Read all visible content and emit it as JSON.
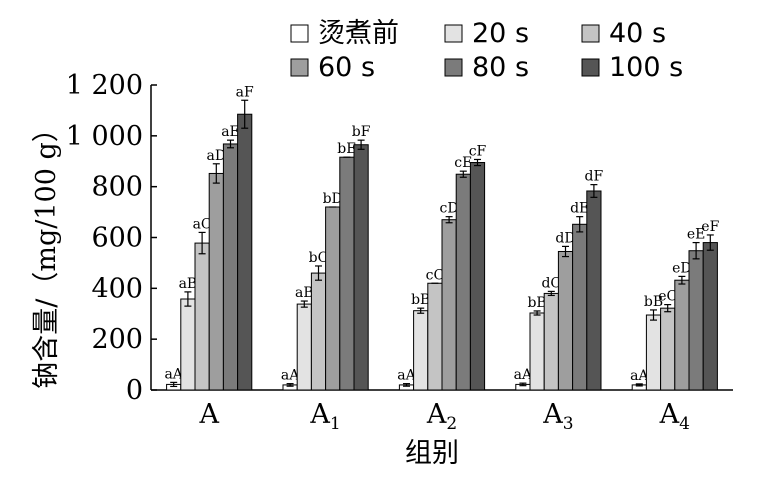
{
  "chart_data": {
    "type": "bar",
    "ylabel_cn": "钠含量/",
    "ylabel_unit": "（mg/100 g）",
    "xlabel": "组别",
    "ylim": [
      0,
      1200
    ],
    "yticks": [
      0,
      200,
      400,
      600,
      800,
      1000,
      1200
    ],
    "ytick_labels": [
      "0",
      "200",
      "400",
      "600",
      "800",
      "1 000",
      "1 200"
    ],
    "categories": [
      {
        "base": "A",
        "sub": ""
      },
      {
        "base": "A",
        "sub": "1"
      },
      {
        "base": "A",
        "sub": "2"
      },
      {
        "base": "A",
        "sub": "3"
      },
      {
        "base": "A",
        "sub": "4"
      }
    ],
    "legend_placement": "top",
    "series": [
      {
        "name": "烫煮前",
        "color": "#ffffff",
        "values": [
          22,
          20,
          20,
          22,
          20
        ],
        "errors": [
          8,
          5,
          5,
          5,
          4
        ],
        "labels": [
          "aA",
          "aA",
          "aA",
          "aA",
          "aA"
        ]
      },
      {
        "name": "20 s",
        "color": "#e3e3e3",
        "values": [
          358,
          338,
          312,
          303,
          295
        ],
        "errors": [
          28,
          12,
          10,
          8,
          20
        ],
        "labels": [
          "aB",
          "aB",
          "bB",
          "bB",
          "bB"
        ]
      },
      {
        "name": "40 s",
        "color": "#c4c4c4",
        "values": [
          578,
          460,
          420,
          380,
          322
        ],
        "errors": [
          42,
          28,
          0,
          8,
          14
        ],
        "labels": [
          "aC",
          "bC",
          "cC",
          "dC",
          "eC"
        ]
      },
      {
        "name": "60 s",
        "color": "#9e9e9e",
        "values": [
          852,
          720,
          670,
          545,
          432
        ],
        "errors": [
          38,
          0,
          12,
          20,
          15
        ],
        "labels": [
          "aD",
          "bD",
          "cD",
          "dD",
          "eD"
        ]
      },
      {
        "name": "80 s",
        "color": "#7b7b7b",
        "values": [
          968,
          916,
          849,
          652,
          548
        ],
        "errors": [
          15,
          0,
          12,
          30,
          32
        ],
        "labels": [
          "aE",
          "bE",
          "cE",
          "dE",
          "eE"
        ]
      },
      {
        "name": "100 s",
        "color": "#555555",
        "values": [
          1085,
          965,
          895,
          783,
          580
        ],
        "errors": [
          55,
          18,
          12,
          25,
          30
        ],
        "labels": [
          "aF",
          "bF",
          "cF",
          "dF",
          "eF"
        ]
      }
    ]
  }
}
